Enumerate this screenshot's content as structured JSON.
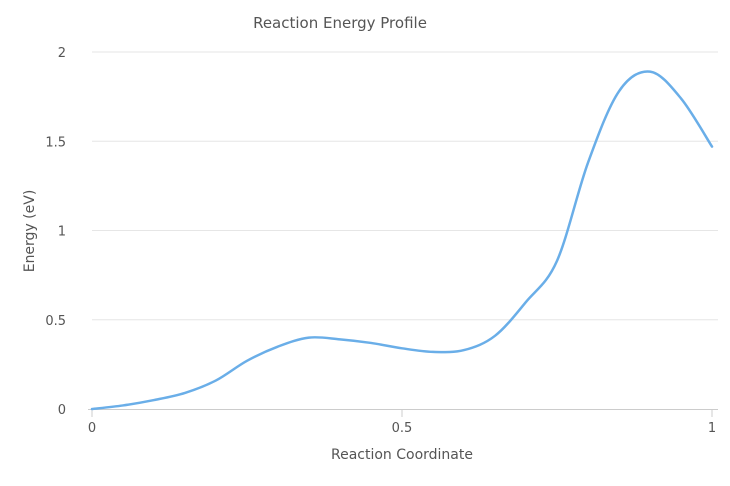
{
  "chart_data": {
    "type": "line",
    "title": "Reaction Energy Profile",
    "xlabel": "Reaction Coordinate",
    "ylabel": "Energy (eV)",
    "xlim": [
      0,
      1
    ],
    "ylim": [
      0,
      2
    ],
    "x_ticks": [
      "0",
      "0.5",
      "1"
    ],
    "y_ticks": [
      "0",
      "0.5",
      "1",
      "1.5",
      "2"
    ],
    "grid": "horizontal",
    "legend": "none",
    "series": [
      {
        "color": "#6aaee8",
        "x": [
          0,
          0.05,
          0.1,
          0.15,
          0.2,
          0.25,
          0.3,
          0.35,
          0.4,
          0.45,
          0.5,
          0.55,
          0.6,
          0.65,
          0.7,
          0.75,
          0.8,
          0.85,
          0.9,
          0.95,
          1
        ],
        "y": [
          0,
          0.02,
          0.05,
          0.09,
          0.16,
          0.27,
          0.35,
          0.4,
          0.39,
          0.37,
          0.34,
          0.32,
          0.33,
          0.41,
          0.6,
          0.83,
          1.38,
          1.78,
          1.89,
          1.74,
          1.47
        ]
      }
    ]
  }
}
